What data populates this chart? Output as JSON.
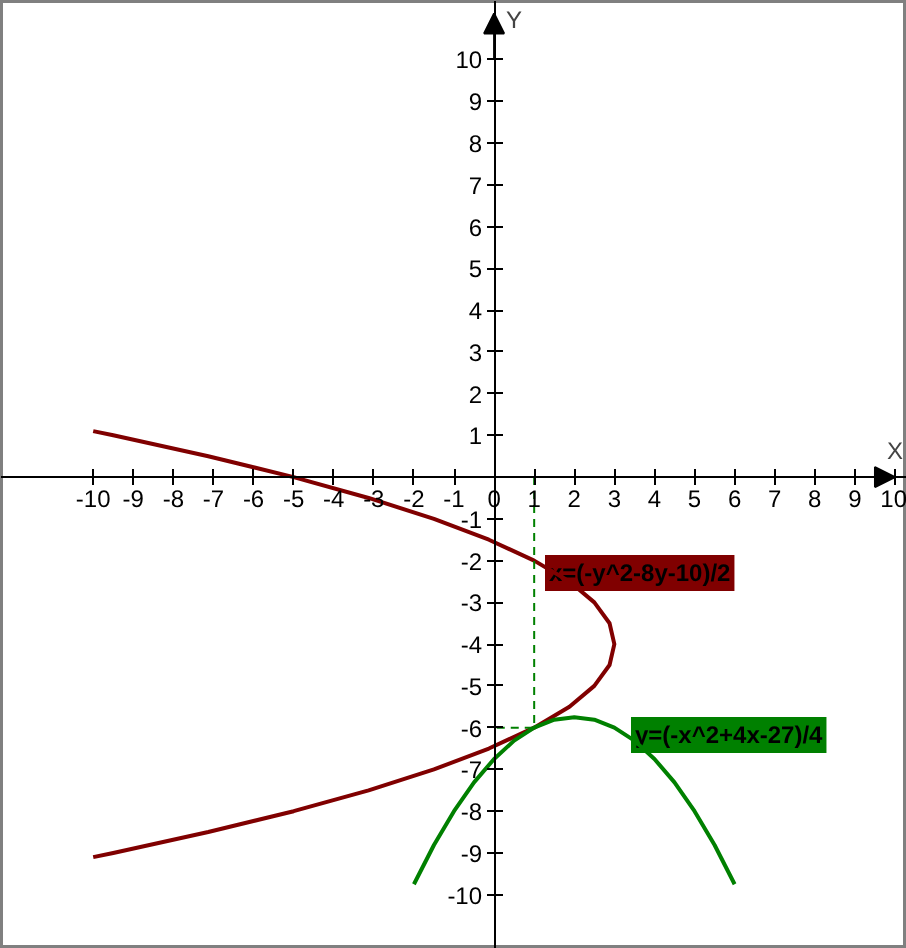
{
  "chart_data": {
    "type": "line",
    "xlabel": "X",
    "ylabel": "Y",
    "xlim": [
      -12.3,
      10.3
    ],
    "ylim": [
      -11.3,
      11.4
    ],
    "xticks": [
      -10,
      -9,
      -8,
      -7,
      -6,
      -5,
      -4,
      -3,
      -2,
      -1,
      0,
      1,
      2,
      3,
      4,
      5,
      6,
      7,
      8,
      9,
      10
    ],
    "yticks": [
      -10,
      -9,
      -8,
      -7,
      -6,
      -5,
      -4,
      -3,
      -2,
      -1,
      {
        "value": 0,
        "label": null
      },
      1,
      2,
      3,
      4,
      5,
      6,
      7,
      8,
      9,
      10
    ],
    "grid": false,
    "marker": "none",
    "series": [
      {
        "color": "#800000",
        "line_style": "solid",
        "x": [
          -10.0,
          -9.5,
          -7.13,
          -5,
          -3.13,
          -1.5,
          -0.13,
          1,
          1.88,
          2.5,
          2.88,
          3,
          2.88,
          2.5,
          1.88,
          1,
          -0.13,
          -1.5,
          -3.13,
          -5,
          -7.13,
          -9.5,
          -10.0
        ],
        "values": [
          1.1,
          1,
          0.5,
          0,
          -0.5,
          -1,
          -1.5,
          -2,
          -2.5,
          -3,
          -3.5,
          -4,
          -4.5,
          -5,
          -5.5,
          -6,
          -6.5,
          -7,
          -7.5,
          -8,
          -8.5,
          -9,
          -9.1
        ]
      },
      {
        "color": "#008000",
        "line_style": "solid",
        "x": [
          -2,
          -1.5,
          -1,
          -0.5,
          0,
          0.5,
          1,
          1.5,
          2,
          2.5,
          3,
          3.5,
          4,
          4.5,
          5,
          5.5,
          6
        ],
        "values": [
          -9.75,
          -8.81,
          -8,
          -7.31,
          -6.75,
          -6.31,
          -6,
          -5.81,
          -5.75,
          -5.81,
          -6,
          -6.31,
          -6.75,
          -7.31,
          -8,
          -8.81,
          -9.75
        ]
      },
      {
        "color": "#008000",
        "line_style": "dashed",
        "x": [
          1,
          1,
          0
        ],
        "values": [
          0,
          -6,
          -6
        ]
      }
    ],
    "annotations": [
      "x=(-y^2-8y-10)/2",
      "y=(-x^2+4x-27)/4"
    ]
  }
}
